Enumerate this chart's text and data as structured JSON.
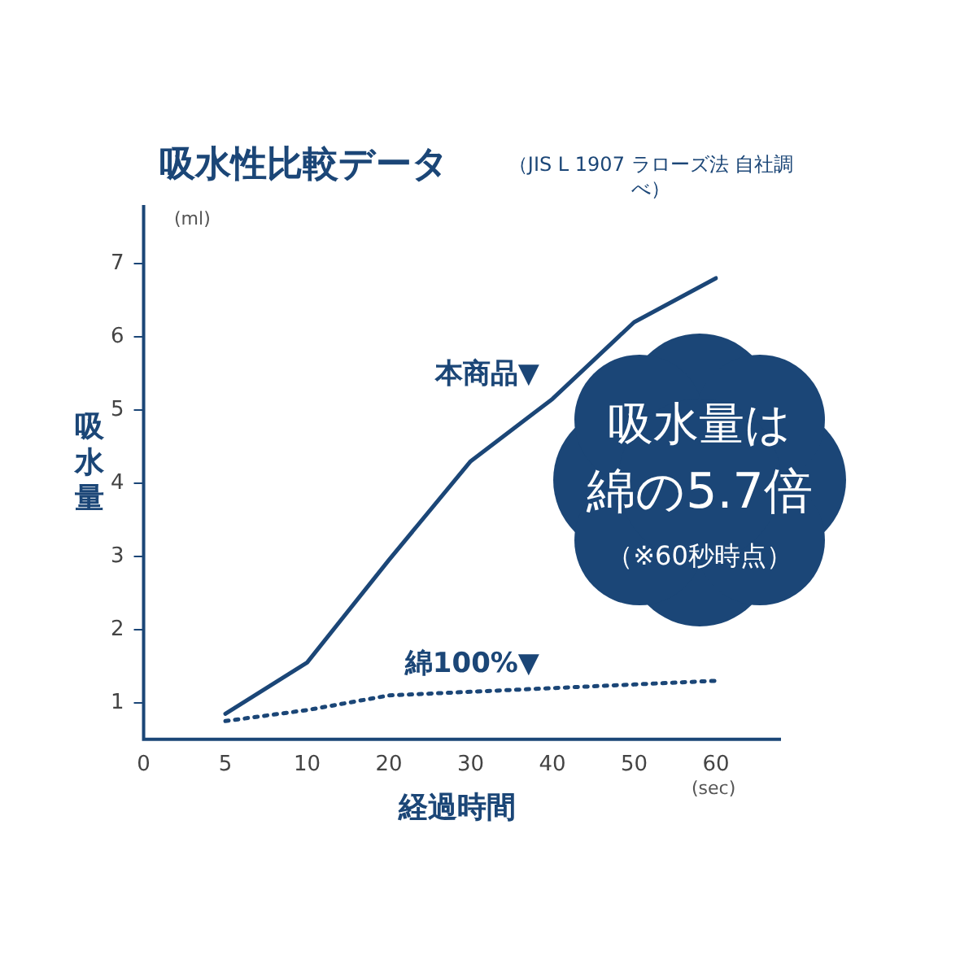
{
  "chart_data": {
    "type": "line",
    "title": "吸水性比較データ",
    "subtitle": "（JIS L 1907 ラローズ法 自社調べ）",
    "xlabel": "経過時間",
    "ylabel": "吸水量",
    "categories": [
      "0",
      "5",
      "10",
      "20",
      "30",
      "40",
      "50",
      "60"
    ],
    "series": [
      {
        "name": "本商品▼",
        "color": "#1b4677",
        "values": [
          null,
          0.85,
          1.55,
          2.95,
          4.3,
          5.15,
          6.2,
          6.8
        ],
        "line_style": "solid"
      },
      {
        "name": "綿100%▼",
        "color": "#1b4677",
        "values": [
          null,
          0.75,
          0.9,
          1.1,
          1.15,
          1.2,
          1.25,
          1.3
        ],
        "line_style": "dotted"
      }
    ],
    "ylim": [
      0.5,
      7.8
    ],
    "yticks": [
      1,
      2,
      3,
      4,
      5,
      6,
      7
    ],
    "grid": false,
    "legend": false,
    "marker": "none",
    "annotations": [
      "(ml)",
      "(sec)",
      "吸水量は",
      "綿の5.7倍",
      "（※60秒時点）"
    ]
  }
}
